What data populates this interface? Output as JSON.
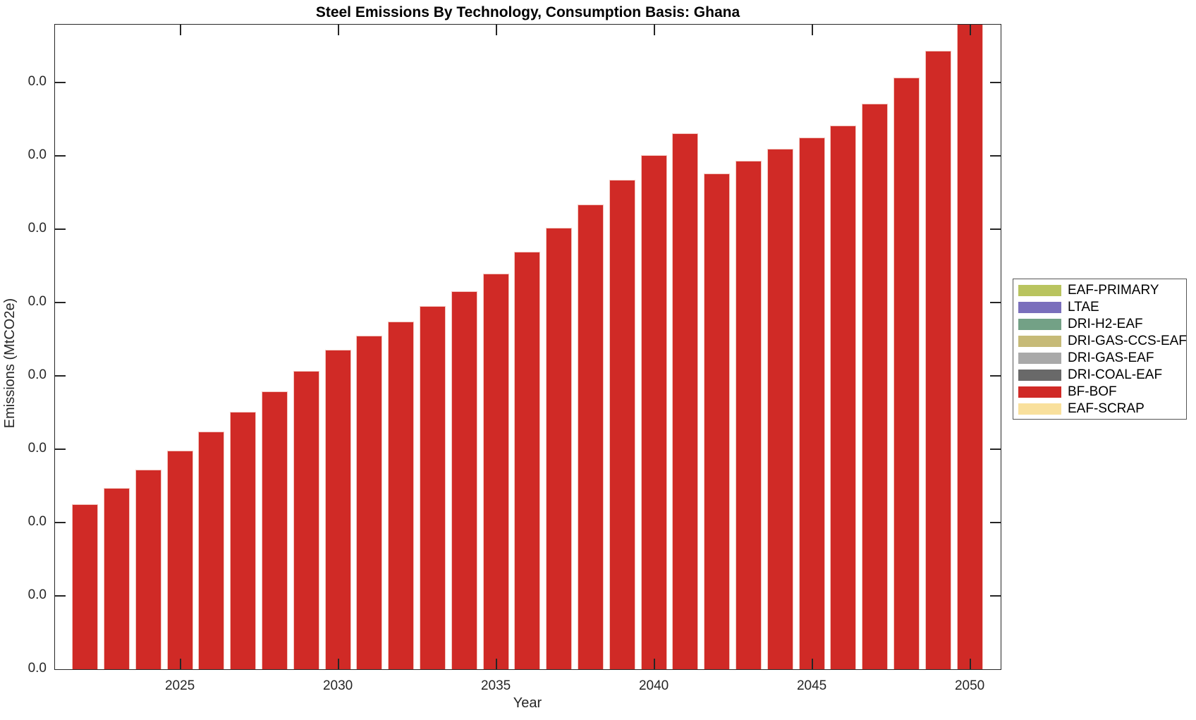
{
  "figure": {
    "title": "Steel Emissions By Technology, Consumption Basis: Ghana",
    "xlabel": "Year",
    "ylabel": "Emissions (MtCO2e)"
  },
  "axes": {
    "x_tick_labels": [
      "2025",
      "2030",
      "2035",
      "2040",
      "2045",
      "2050"
    ],
    "y_tick_labels_bottom_to_top": [
      "0.0",
      "0.0",
      "0.0",
      "0.0",
      "0.0",
      "0.0",
      "0.0",
      "0.0",
      "0.0"
    ],
    "box": "on",
    "tick_direction": "in",
    "grid": "off"
  },
  "legend": {
    "position": "outside-right",
    "entries": [
      {
        "label": "EAF-PRIMARY",
        "color": "#b9c45f"
      },
      {
        "label": "LTAE",
        "color": "#7a6fbc"
      },
      {
        "label": "DRI-H2-EAF",
        "color": "#73a186"
      },
      {
        "label": "DRI-GAS-CCS-EAF",
        "color": "#c6ba77"
      },
      {
        "label": "DRI-GAS-EAF",
        "color": "#a9a9a9"
      },
      {
        "label": "DRI-COAL-EAF",
        "color": "#696969"
      },
      {
        "label": "BF-BOF",
        "color": "#d02a26"
      },
      {
        "label": "EAF-SCRAP",
        "color": "#f9e09c"
      }
    ]
  },
  "chart_data": {
    "type": "bar",
    "stacked": true,
    "title": "Steel Emissions By Technology, Consumption Basis: Ghana",
    "xlabel": "Year",
    "ylabel": "Emissions (MtCO2e)",
    "categories": [
      2022,
      2023,
      2024,
      2025,
      2026,
      2027,
      2028,
      2029,
      2030,
      2031,
      2032,
      2033,
      2034,
      2035,
      2036,
      2037,
      2038,
      2039,
      2040,
      2041,
      2042,
      2043,
      2044,
      2045,
      2046,
      2047,
      2048,
      2049,
      2050
    ],
    "series": [
      {
        "name": "BF-BOF",
        "color": "#d02a26",
        "values": [
          2.25,
          2.47,
          2.72,
          2.98,
          3.24,
          3.51,
          3.79,
          4.07,
          4.36,
          4.55,
          4.74,
          4.95,
          5.15,
          5.39,
          5.69,
          6.02,
          6.34,
          6.67,
          7.01,
          7.31,
          6.76,
          6.93,
          7.1,
          7.25,
          7.41,
          7.71,
          8.07,
          8.43,
          8.85
        ]
      }
    ],
    "series_in_legend_only": [
      "EAF-PRIMARY",
      "LTAE",
      "DRI-H2-EAF",
      "DRI-GAS-CCS-EAF",
      "DRI-GAS-EAF",
      "DRI-COAL-EAF",
      "EAF-SCRAP"
    ],
    "units": "y-axis tick intervals (1 unit = distance between adjacent ticks); every tick label displays 0.0",
    "ylim_tick_units": [
      0,
      8.82
    ],
    "notes": "Only BF-BOF bars are visible; all other technology series are approximately 0 for every year. The 2050 bar is clipped at the top of the axes."
  }
}
